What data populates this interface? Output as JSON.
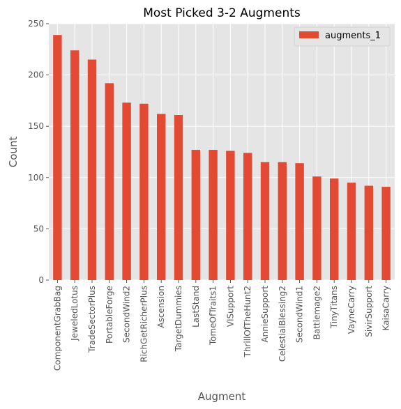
{
  "chart_data": {
    "type": "bar",
    "title": "Most Picked 3-2 Augments",
    "xlabel": "Augment",
    "ylabel": "Count",
    "ylim": [
      0,
      250
    ],
    "yticks": [
      0,
      50,
      100,
      150,
      200,
      250
    ],
    "grid": true,
    "legend_position": "top-right",
    "categories": [
      "ComponentGrabBag",
      "JeweledLotus",
      "TradeSectorPlus",
      "PortableForge",
      "SecondWind2",
      "RichGetRicherPlus",
      "Ascension",
      "TargetDummies",
      "LastStand",
      "TomeOfTraits1",
      "VISupport",
      "ThrillOfTheHunt2",
      "AnnieSupport",
      "CelestialBlessing2",
      "SecondWind1",
      "Battlemage2",
      "TinyTitans",
      "VayneCarry",
      "SivirSupport",
      "KaisaCarry"
    ],
    "series": [
      {
        "name": "augments_1",
        "color": "#E24A33",
        "values": [
          239,
          224,
          215,
          192,
          173,
          172,
          162,
          161,
          127,
          127,
          126,
          124,
          115,
          115,
          114,
          101,
          99,
          95,
          92,
          91
        ]
      }
    ]
  }
}
